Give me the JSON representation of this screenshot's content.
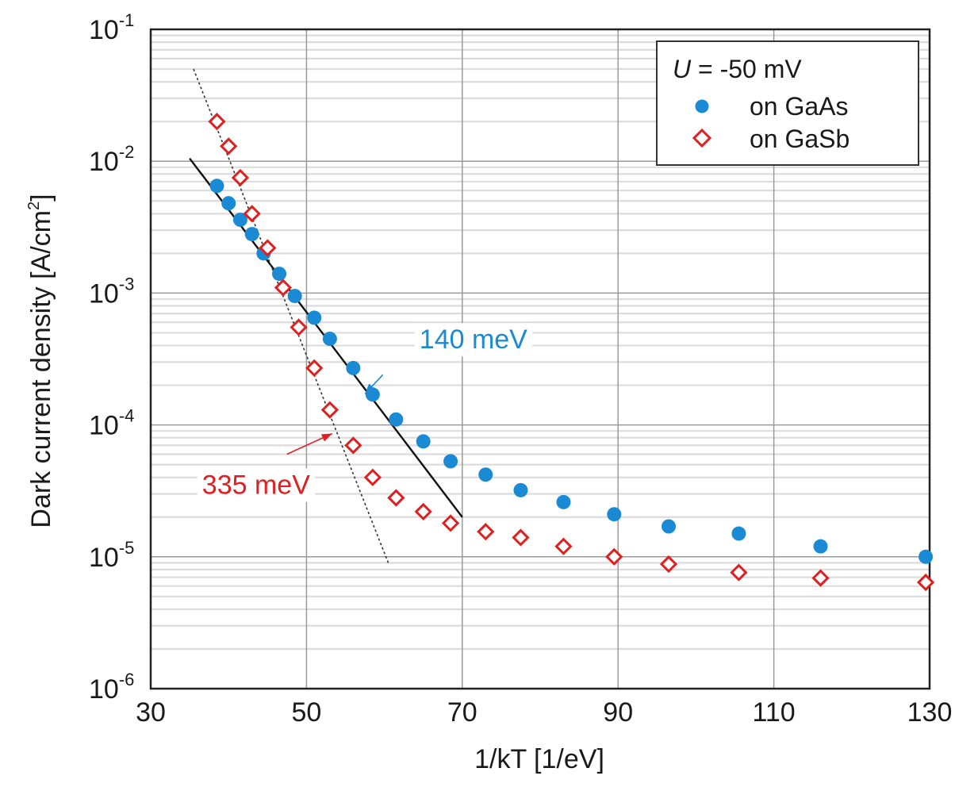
{
  "chart_data": {
    "type": "scatter",
    "x_scale": "linear",
    "y_scale": "log",
    "xlim": [
      30,
      130
    ],
    "ylim": [
      1e-06,
      0.1
    ],
    "xlabel": "1/kT [1/eV]",
    "ylabel_main": "Dark current density [A/cm",
    "ylabel_sup": "2",
    "ylabel_end": "]",
    "x_ticks": [
      30,
      50,
      70,
      90,
      110,
      130
    ],
    "x_tick_labels": [
      "30",
      "50",
      "70",
      "90",
      "110",
      "130"
    ],
    "y_ticks": [
      {
        "value": 1e-06,
        "base": "10",
        "exp": "-6"
      },
      {
        "value": 1e-05,
        "base": "10",
        "exp": "-5"
      },
      {
        "value": 0.0001,
        "base": "10",
        "exp": "-4"
      },
      {
        "value": 0.001,
        "base": "10",
        "exp": "-3"
      },
      {
        "value": 0.01,
        "base": "10",
        "exp": "-2"
      },
      {
        "value": 0.1,
        "base": "10",
        "exp": "-1"
      }
    ],
    "grid": true,
    "legend": {
      "position": "top-right",
      "title_var": "U",
      "title_rest": " = -50 mV",
      "entries": [
        "on GaAs",
        "on GaSb"
      ]
    },
    "series": [
      {
        "name": "on GaAs",
        "marker": "filled-circle",
        "color": "#1a8ad4",
        "x": [
          38.5,
          40,
          41.5,
          43,
          44.5,
          46.5,
          48.5,
          51,
          53,
          56,
          58.5,
          61.5,
          65,
          68.5,
          73,
          77.5,
          83,
          89.5,
          96.5,
          105.5,
          116,
          129.5
        ],
        "y": [
          0.0065,
          0.0048,
          0.0036,
          0.0028,
          0.002,
          0.0014,
          0.00095,
          0.00065,
          0.00045,
          0.00027,
          0.00017,
          0.00011,
          7.5e-05,
          5.3e-05,
          4.2e-05,
          3.2e-05,
          2.6e-05,
          2.1e-05,
          1.7e-05,
          1.5e-05,
          1.2e-05,
          1e-05
        ]
      },
      {
        "name": "on GaSb",
        "marker": "open-diamond",
        "color": "#e02020",
        "x": [
          38.5,
          40,
          41.5,
          43,
          45,
          47,
          49,
          51,
          53,
          56,
          58.5,
          61.5,
          65,
          68.5,
          73,
          77.5,
          83,
          89.5,
          96.5,
          105.5,
          116,
          129.5
        ],
        "y": [
          0.02,
          0.013,
          0.0075,
          0.004,
          0.0022,
          0.0011,
          0.00055,
          0.00027,
          0.00013,
          7e-05,
          4e-05,
          2.8e-05,
          2.2e-05,
          1.8e-05,
          1.55e-05,
          1.4e-05,
          1.2e-05,
          1e-05,
          8.8e-06,
          7.6e-06,
          6.9e-06,
          6.4e-06
        ]
      }
    ],
    "fit_lines": [
      {
        "label": "140 meV",
        "style": "solid",
        "color": "#111111",
        "x": [
          35,
          70
        ],
        "y": [
          0.0105,
          2e-05
        ]
      },
      {
        "label": "335 meV",
        "style": "dotted",
        "color": "#333333",
        "x": [
          35.5,
          60.5
        ],
        "y": [
          0.05,
          9e-06
        ]
      }
    ],
    "annotations": [
      {
        "text": "140 meV",
        "color": "#1a8ad4",
        "text_at": [
          64.5,
          0.00038
        ],
        "arrow_from": [
          59.8,
          0.00024
        ],
        "arrow_to": [
          57.5,
          0.000172
        ]
      },
      {
        "text": "335 meV",
        "color": "#e02020",
        "text_at": [
          36.6,
          3e-05
        ],
        "arrow_from": [
          47.5,
          6e-05
        ],
        "arrow_to": [
          53.3,
          8.6e-05
        ]
      }
    ]
  }
}
